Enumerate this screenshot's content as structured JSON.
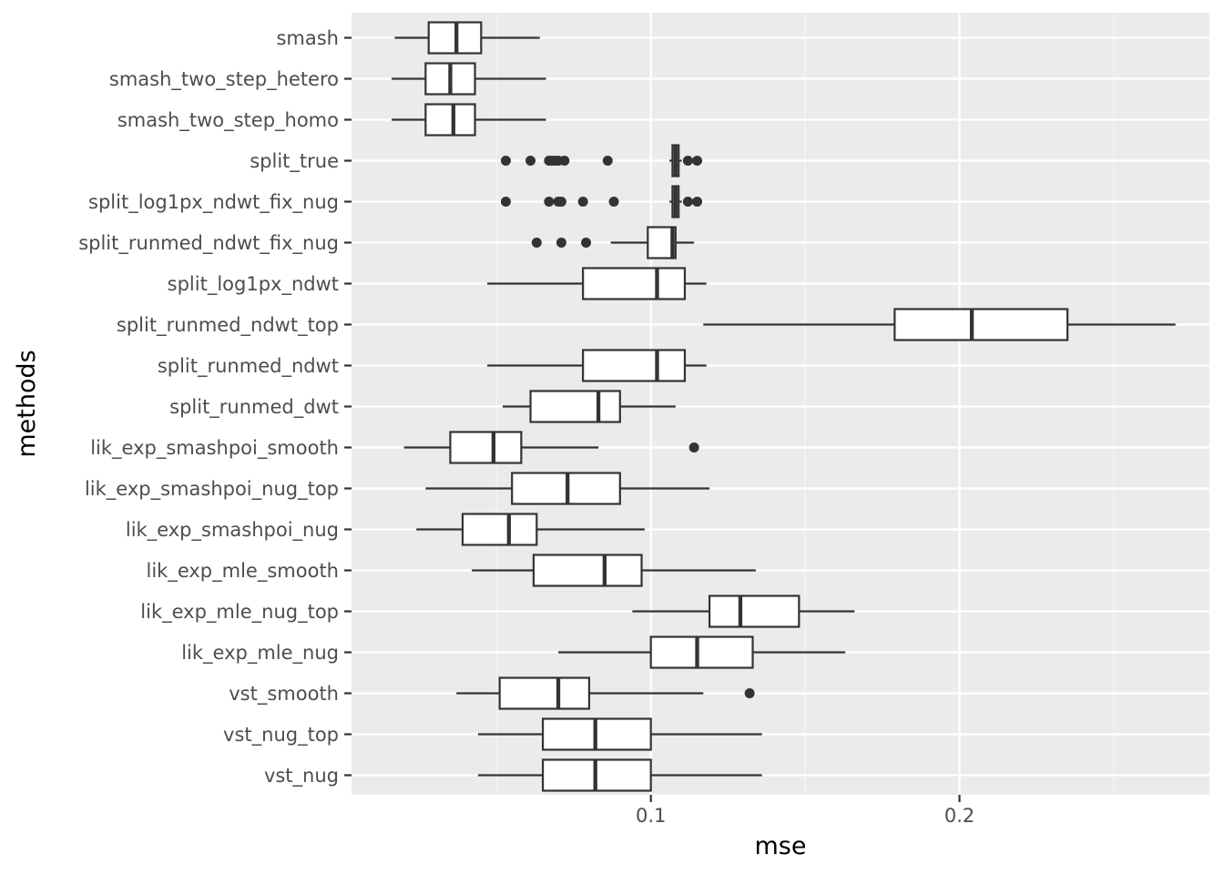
{
  "chart_data": {
    "type": "boxplot",
    "orientation": "horizontal",
    "xlabel": "mse",
    "ylabel": "methods",
    "xlim": [
      0.003,
      0.281
    ],
    "x_ticks": [
      0.1,
      0.2
    ],
    "x_tick_labels": [
      "0.1",
      "0.2"
    ],
    "x_minor_ticks": [
      0.05,
      0.15,
      0.25
    ],
    "grid": true,
    "categories_top_to_bottom": [
      "smash",
      "smash_two_step_hetero",
      "smash_two_step_homo",
      "split_true",
      "split_log1px_ndwt_fix_nug",
      "split_runmed_ndwt_fix_nug",
      "split_log1px_ndwt",
      "split_runmed_ndwt_top",
      "split_runmed_ndwt",
      "split_runmed_dwt",
      "lik_exp_smashpoi_smooth",
      "lik_exp_smashpoi_nug_top",
      "lik_exp_smashpoi_nug",
      "lik_exp_mle_smooth",
      "lik_exp_mle_nug_top",
      "lik_exp_mle_nug",
      "vst_smooth",
      "vst_nug_top",
      "vst_nug"
    ],
    "boxes": [
      {
        "name": "smash",
        "whisker_low": 0.017,
        "q1": 0.028,
        "median": 0.037,
        "q3": 0.045,
        "whisker_high": 0.064,
        "outliers": []
      },
      {
        "name": "smash_two_step_hetero",
        "whisker_low": 0.016,
        "q1": 0.027,
        "median": 0.035,
        "q3": 0.043,
        "whisker_high": 0.066,
        "outliers": []
      },
      {
        "name": "smash_two_step_homo",
        "whisker_low": 0.016,
        "q1": 0.027,
        "median": 0.036,
        "q3": 0.043,
        "whisker_high": 0.066,
        "outliers": []
      },
      {
        "name": "split_true",
        "whisker_low": 0.106,
        "q1": 0.107,
        "median": 0.108,
        "q3": 0.109,
        "whisker_high": 0.11,
        "outliers": [
          0.053,
          0.061,
          0.067,
          0.068,
          0.069,
          0.07,
          0.072,
          0.086,
          0.112,
          0.115
        ]
      },
      {
        "name": "split_log1px_ndwt_fix_nug",
        "whisker_low": 0.106,
        "q1": 0.107,
        "median": 0.108,
        "q3": 0.109,
        "whisker_high": 0.11,
        "outliers": [
          0.053,
          0.067,
          0.07,
          0.071,
          0.078,
          0.088,
          0.112,
          0.115
        ]
      },
      {
        "name": "split_runmed_ndwt_fix_nug",
        "whisker_low": 0.087,
        "q1": 0.099,
        "median": 0.107,
        "q3": 0.108,
        "whisker_high": 0.114,
        "outliers": [
          0.063,
          0.071,
          0.079
        ]
      },
      {
        "name": "split_log1px_ndwt",
        "whisker_low": 0.047,
        "q1": 0.078,
        "median": 0.102,
        "q3": 0.111,
        "whisker_high": 0.118,
        "outliers": []
      },
      {
        "name": "split_runmed_ndwt_top",
        "whisker_low": 0.117,
        "q1": 0.179,
        "median": 0.204,
        "q3": 0.235,
        "whisker_high": 0.27,
        "outliers": []
      },
      {
        "name": "split_runmed_ndwt",
        "whisker_low": 0.047,
        "q1": 0.078,
        "median": 0.102,
        "q3": 0.111,
        "whisker_high": 0.118,
        "outliers": []
      },
      {
        "name": "split_runmed_dwt",
        "whisker_low": 0.052,
        "q1": 0.061,
        "median": 0.083,
        "q3": 0.09,
        "whisker_high": 0.108,
        "outliers": []
      },
      {
        "name": "lik_exp_smashpoi_smooth",
        "whisker_low": 0.02,
        "q1": 0.035,
        "median": 0.049,
        "q3": 0.058,
        "whisker_high": 0.083,
        "outliers": [
          0.114
        ]
      },
      {
        "name": "lik_exp_smashpoi_nug_top",
        "whisker_low": 0.027,
        "q1": 0.055,
        "median": 0.073,
        "q3": 0.09,
        "whisker_high": 0.119,
        "outliers": []
      },
      {
        "name": "lik_exp_smashpoi_nug",
        "whisker_low": 0.024,
        "q1": 0.039,
        "median": 0.054,
        "q3": 0.063,
        "whisker_high": 0.098,
        "outliers": []
      },
      {
        "name": "lik_exp_mle_smooth",
        "whisker_low": 0.042,
        "q1": 0.062,
        "median": 0.085,
        "q3": 0.097,
        "whisker_high": 0.134,
        "outliers": []
      },
      {
        "name": "lik_exp_mle_nug_top",
        "whisker_low": 0.094,
        "q1": 0.119,
        "median": 0.129,
        "q3": 0.148,
        "whisker_high": 0.166,
        "outliers": []
      },
      {
        "name": "lik_exp_mle_nug",
        "whisker_low": 0.07,
        "q1": 0.1,
        "median": 0.115,
        "q3": 0.133,
        "whisker_high": 0.163,
        "outliers": []
      },
      {
        "name": "vst_smooth",
        "whisker_low": 0.037,
        "q1": 0.051,
        "median": 0.07,
        "q3": 0.08,
        "whisker_high": 0.117,
        "outliers": [
          0.132
        ]
      },
      {
        "name": "vst_nug_top",
        "whisker_low": 0.044,
        "q1": 0.065,
        "median": 0.082,
        "q3": 0.1,
        "whisker_high": 0.136,
        "outliers": []
      },
      {
        "name": "vst_nug",
        "whisker_low": 0.044,
        "q1": 0.065,
        "median": 0.082,
        "q3": 0.1,
        "whisker_high": 0.136,
        "outliers": []
      }
    ]
  },
  "colors": {
    "panel_background": "#ebebeb",
    "grid_major": "#ffffff",
    "grid_minor": "#f5f5f5",
    "box_fill": "#ffffff",
    "box_stroke": "#333333",
    "tick_color": "#333333"
  }
}
